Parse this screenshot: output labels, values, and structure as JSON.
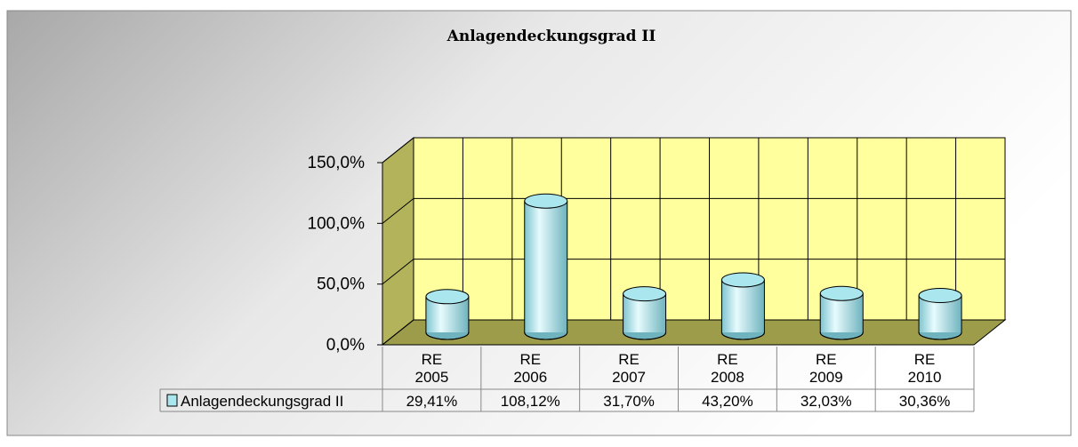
{
  "chart_data": {
    "type": "bar",
    "title": "Anlagendeckungsgrad II",
    "categories": [
      "RE 2005",
      "RE 2006",
      "RE 2007",
      "RE 2008",
      "RE 2009",
      "RE 2010"
    ],
    "series": [
      {
        "name": "Anlagendeckungsgrad II",
        "color": "#a9e6ee",
        "values": [
          29.41,
          108.12,
          31.7,
          43.2,
          32.03,
          30.36
        ],
        "value_labels": [
          "29,41%",
          "108,12%",
          "31,70%",
          "43,20%",
          "32,03%",
          "30,36%"
        ]
      }
    ],
    "ylim": [
      0,
      150
    ],
    "yticks": [
      {
        "value": 0,
        "label": "0,0%"
      },
      {
        "value": 50,
        "label": "50,0%"
      },
      {
        "value": 100,
        "label": "100,0%"
      },
      {
        "value": 150,
        "label": "150,0%"
      }
    ],
    "grid": true
  }
}
